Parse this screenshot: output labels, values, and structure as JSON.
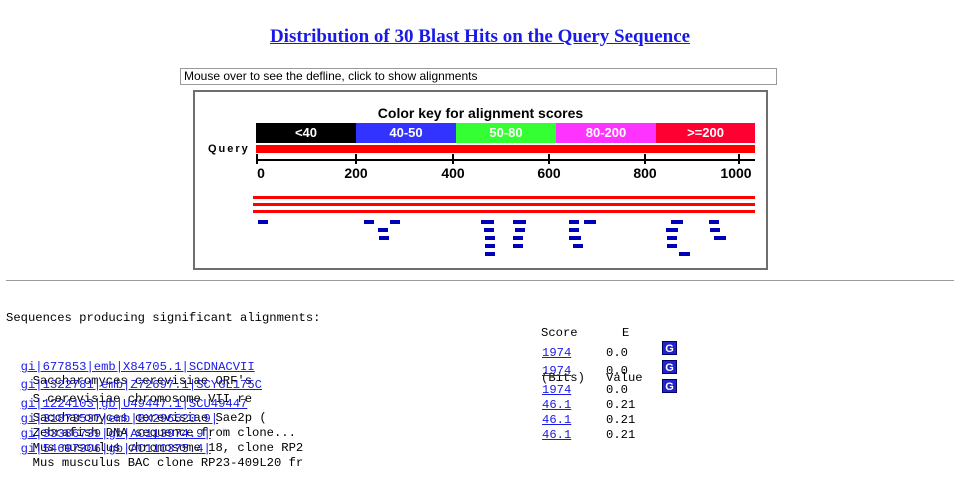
{
  "page_title": "Distribution of 30 Blast Hits on the Query Sequence",
  "defline_box": "Mouse over to see the defline, click to show alignments",
  "graph": {
    "key_title": "Color key for alignment scores",
    "key": [
      {
        "label": "<40",
        "color": "#000000"
      },
      {
        "label": "40-50",
        "color": "#3333ff"
      },
      {
        "label": "50-80",
        "color": "#33ff33"
      },
      {
        "label": "80-200",
        "color": "#ff33ff"
      },
      {
        "label": ">=200",
        "color": "#ff0033"
      }
    ],
    "query_label": "Query",
    "axis_ticks": [
      "0",
      "200",
      "400",
      "600",
      "800",
      "1000"
    ]
  },
  "table": {
    "header_desc": "Sequences producing significant alignments:",
    "header_score": [
      "Score",
      "(Bits)"
    ],
    "header_evalue": [
      "E",
      "Value"
    ],
    "rows": [
      {
        "accession": "gi|677853|emb|X84705.1|SCDNACVII",
        "description": "Saccharomyces cerevisiae ORF's",
        "score": "1974",
        "evalue": "0.0",
        "gene_link": "G"
      },
      {
        "accession": "gi|1322781|emb|Z72697.1|SCYGL175C",
        "description": "S.cerevisiae chromosome VII re",
        "score": "1974",
        "evalue": "0.0",
        "gene_link": "G"
      },
      {
        "accession": "gi|1224103|gb|U49447.1|SCU49447",
        "description": "Saccharomyces cerevisiae Sae2p (",
        "score": "1974",
        "evalue": "0.0",
        "gene_link": "G"
      },
      {
        "accession": "gi|31873537|emb|BX296520.9|",
        "description": "Zebrafish DNA sequence from clone...",
        "score": "46.1",
        "evalue": "0.21",
        "gene_link": ""
      },
      {
        "accession": "gi|33386739|gb|AC113974.9|",
        "description": "Mus musculus chromosome 18, clone RP2",
        "score": "46.1",
        "evalue": "0.21",
        "gene_link": ""
      },
      {
        "accession": "gi|54697306|gb|AC110375.4|",
        "description": "Mus musculus BAC clone RP23-409L20 fr",
        "score": "46.1",
        "evalue": "0.21",
        "gene_link": ""
      }
    ]
  },
  "colors": {
    "link": "#1a1ae6",
    "hit_bar": "#ff0000",
    "low_hit": "#0000bb",
    "gene_button": "#2222cc"
  }
}
